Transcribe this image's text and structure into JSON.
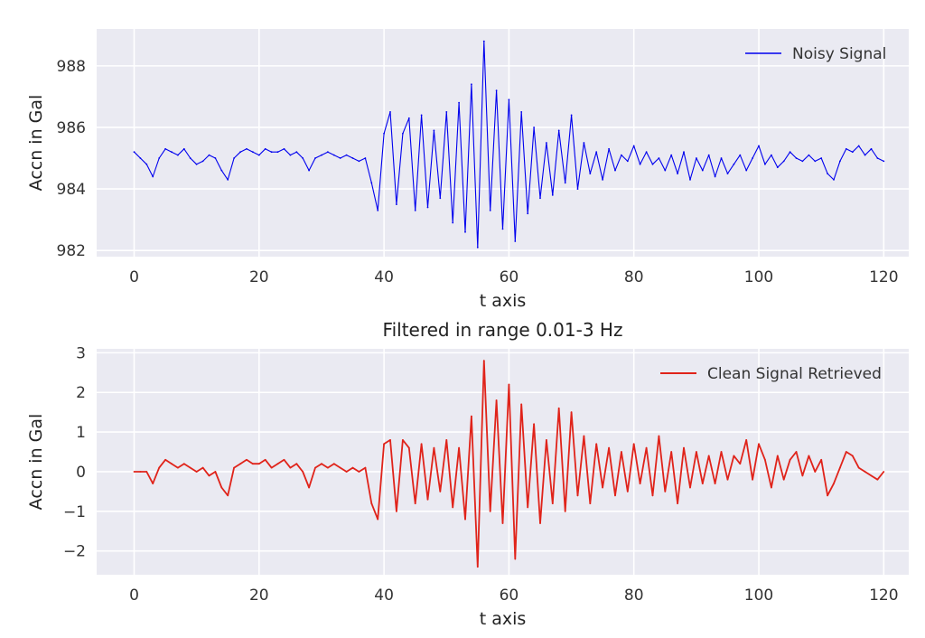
{
  "chart_data": [
    {
      "type": "line",
      "title": "",
      "xlabel": "t axis",
      "ylabel": "Accn in Gal",
      "xlim": [
        -6,
        124
      ],
      "ylim": [
        981.8,
        989.2
      ],
      "xticks": [
        0,
        20,
        40,
        60,
        80,
        100,
        120
      ],
      "yticks": [
        982,
        984,
        986,
        988
      ],
      "grid": true,
      "legend": "top-right",
      "series": [
        {
          "name": "Noisy Signal",
          "color": "#0000ee",
          "x": [
            0,
            1,
            2,
            3,
            4,
            5,
            6,
            7,
            8,
            9,
            10,
            11,
            12,
            13,
            14,
            15,
            16,
            17,
            18,
            19,
            20,
            21,
            22,
            23,
            24,
            25,
            26,
            27,
            28,
            29,
            30,
            31,
            32,
            33,
            34,
            35,
            36,
            37,
            38,
            39,
            40,
            41,
            42,
            43,
            44,
            45,
            46,
            47,
            48,
            49,
            50,
            51,
            52,
            53,
            54,
            55,
            56,
            57,
            58,
            59,
            60,
            61,
            62,
            63,
            64,
            65,
            66,
            67,
            68,
            69,
            70,
            71,
            72,
            73,
            74,
            75,
            76,
            77,
            78,
            79,
            80,
            81,
            82,
            83,
            84,
            85,
            86,
            87,
            88,
            89,
            90,
            91,
            92,
            93,
            94,
            95,
            96,
            97,
            98,
            99,
            100,
            101,
            102,
            103,
            104,
            105,
            106,
            107,
            108,
            109,
            110,
            111,
            112,
            113,
            114,
            115,
            116,
            117,
            118,
            119,
            120
          ],
          "values": [
            985.2,
            985.0,
            984.8,
            984.4,
            985.0,
            985.3,
            985.2,
            985.1,
            985.3,
            985.0,
            984.8,
            984.9,
            985.1,
            985.0,
            984.6,
            984.3,
            985.0,
            985.2,
            985.3,
            985.2,
            985.1,
            985.3,
            985.2,
            985.2,
            985.3,
            985.1,
            985.2,
            985.0,
            984.6,
            985.0,
            985.1,
            985.2,
            985.1,
            985.0,
            985.1,
            985.0,
            984.9,
            985.0,
            984.2,
            983.3,
            985.8,
            986.5,
            983.5,
            985.8,
            986.3,
            983.3,
            986.4,
            983.4,
            985.9,
            983.7,
            986.5,
            982.9,
            986.8,
            982.6,
            987.4,
            982.1,
            988.8,
            983.3,
            987.2,
            982.7,
            986.9,
            982.3,
            986.5,
            983.2,
            986.0,
            983.7,
            985.5,
            983.8,
            985.9,
            984.2,
            986.4,
            984.0,
            985.5,
            984.5,
            985.2,
            984.3,
            985.3,
            984.6,
            985.1,
            984.9,
            985.4,
            984.8,
            985.2,
            984.8,
            985.0,
            984.6,
            985.1,
            984.5,
            985.2,
            984.3,
            985.0,
            984.6,
            985.1,
            984.4,
            985.0,
            984.5,
            984.8,
            985.1,
            984.6,
            985.0,
            985.4,
            984.8,
            985.1,
            984.7,
            984.9,
            985.2,
            985.0,
            984.9,
            985.1,
            984.9,
            985.0,
            984.5,
            984.3,
            984.9,
            985.3,
            985.2,
            985.4,
            985.1,
            985.3,
            985.0,
            984.9
          ]
        }
      ]
    },
    {
      "type": "line",
      "title": "Filtered in range 0.01-3 Hz",
      "xlabel": "t axis",
      "ylabel": "Accn in Gal",
      "xlim": [
        -6,
        124
      ],
      "ylim": [
        -2.6,
        3.1
      ],
      "xticks": [
        0,
        20,
        40,
        60,
        80,
        100,
        120
      ],
      "yticks": [
        -2,
        -1,
        0,
        1,
        2,
        3
      ],
      "grid": true,
      "legend": "top-right",
      "series": [
        {
          "name": "Clean Signal Retrieved",
          "color": "#e0231a",
          "x": [
            0,
            1,
            2,
            3,
            4,
            5,
            6,
            7,
            8,
            9,
            10,
            11,
            12,
            13,
            14,
            15,
            16,
            17,
            18,
            19,
            20,
            21,
            22,
            23,
            24,
            25,
            26,
            27,
            28,
            29,
            30,
            31,
            32,
            33,
            34,
            35,
            36,
            37,
            38,
            39,
            40,
            41,
            42,
            43,
            44,
            45,
            46,
            47,
            48,
            49,
            50,
            51,
            52,
            53,
            54,
            55,
            56,
            57,
            58,
            59,
            60,
            61,
            62,
            63,
            64,
            65,
            66,
            67,
            68,
            69,
            70,
            71,
            72,
            73,
            74,
            75,
            76,
            77,
            78,
            79,
            80,
            81,
            82,
            83,
            84,
            85,
            86,
            87,
            88,
            89,
            90,
            91,
            92,
            93,
            94,
            95,
            96,
            97,
            98,
            99,
            100,
            101,
            102,
            103,
            104,
            105,
            106,
            107,
            108,
            109,
            110,
            111,
            112,
            113,
            114,
            115,
            116,
            117,
            118,
            119,
            120
          ],
          "values": [
            0.0,
            0.0,
            0.0,
            -0.3,
            0.1,
            0.3,
            0.2,
            0.1,
            0.2,
            0.1,
            0.0,
            0.1,
            -0.1,
            0.0,
            -0.4,
            -0.6,
            0.1,
            0.2,
            0.3,
            0.2,
            0.2,
            0.3,
            0.1,
            0.2,
            0.3,
            0.1,
            0.2,
            0.0,
            -0.4,
            0.1,
            0.2,
            0.1,
            0.2,
            0.1,
            0.0,
            0.1,
            0.0,
            0.1,
            -0.8,
            -1.2,
            0.7,
            0.8,
            -1.0,
            0.8,
            0.6,
            -0.8,
            0.7,
            -0.7,
            0.6,
            -0.5,
            0.8,
            -0.9,
            0.6,
            -1.2,
            1.4,
            -2.4,
            2.8,
            -1.0,
            1.8,
            -1.3,
            2.2,
            -2.2,
            1.7,
            -0.9,
            1.2,
            -1.3,
            0.8,
            -0.8,
            1.6,
            -1.0,
            1.5,
            -0.6,
            0.9,
            -0.8,
            0.7,
            -0.4,
            0.6,
            -0.6,
            0.5,
            -0.5,
            0.7,
            -0.3,
            0.6,
            -0.6,
            0.9,
            -0.5,
            0.5,
            -0.8,
            0.6,
            -0.4,
            0.5,
            -0.3,
            0.4,
            -0.3,
            0.5,
            -0.2,
            0.4,
            0.2,
            0.8,
            -0.2,
            0.7,
            0.3,
            -0.4,
            0.4,
            -0.2,
            0.3,
            0.5,
            -0.1,
            0.4,
            0.0,
            0.3,
            -0.6,
            -0.3,
            0.1,
            0.5,
            0.4,
            0.1,
            0.0,
            -0.1,
            -0.2,
            0.0
          ]
        }
      ]
    }
  ],
  "style": {
    "panel_bg": "#eaeaf2",
    "grid_color": "#ffffff"
  }
}
